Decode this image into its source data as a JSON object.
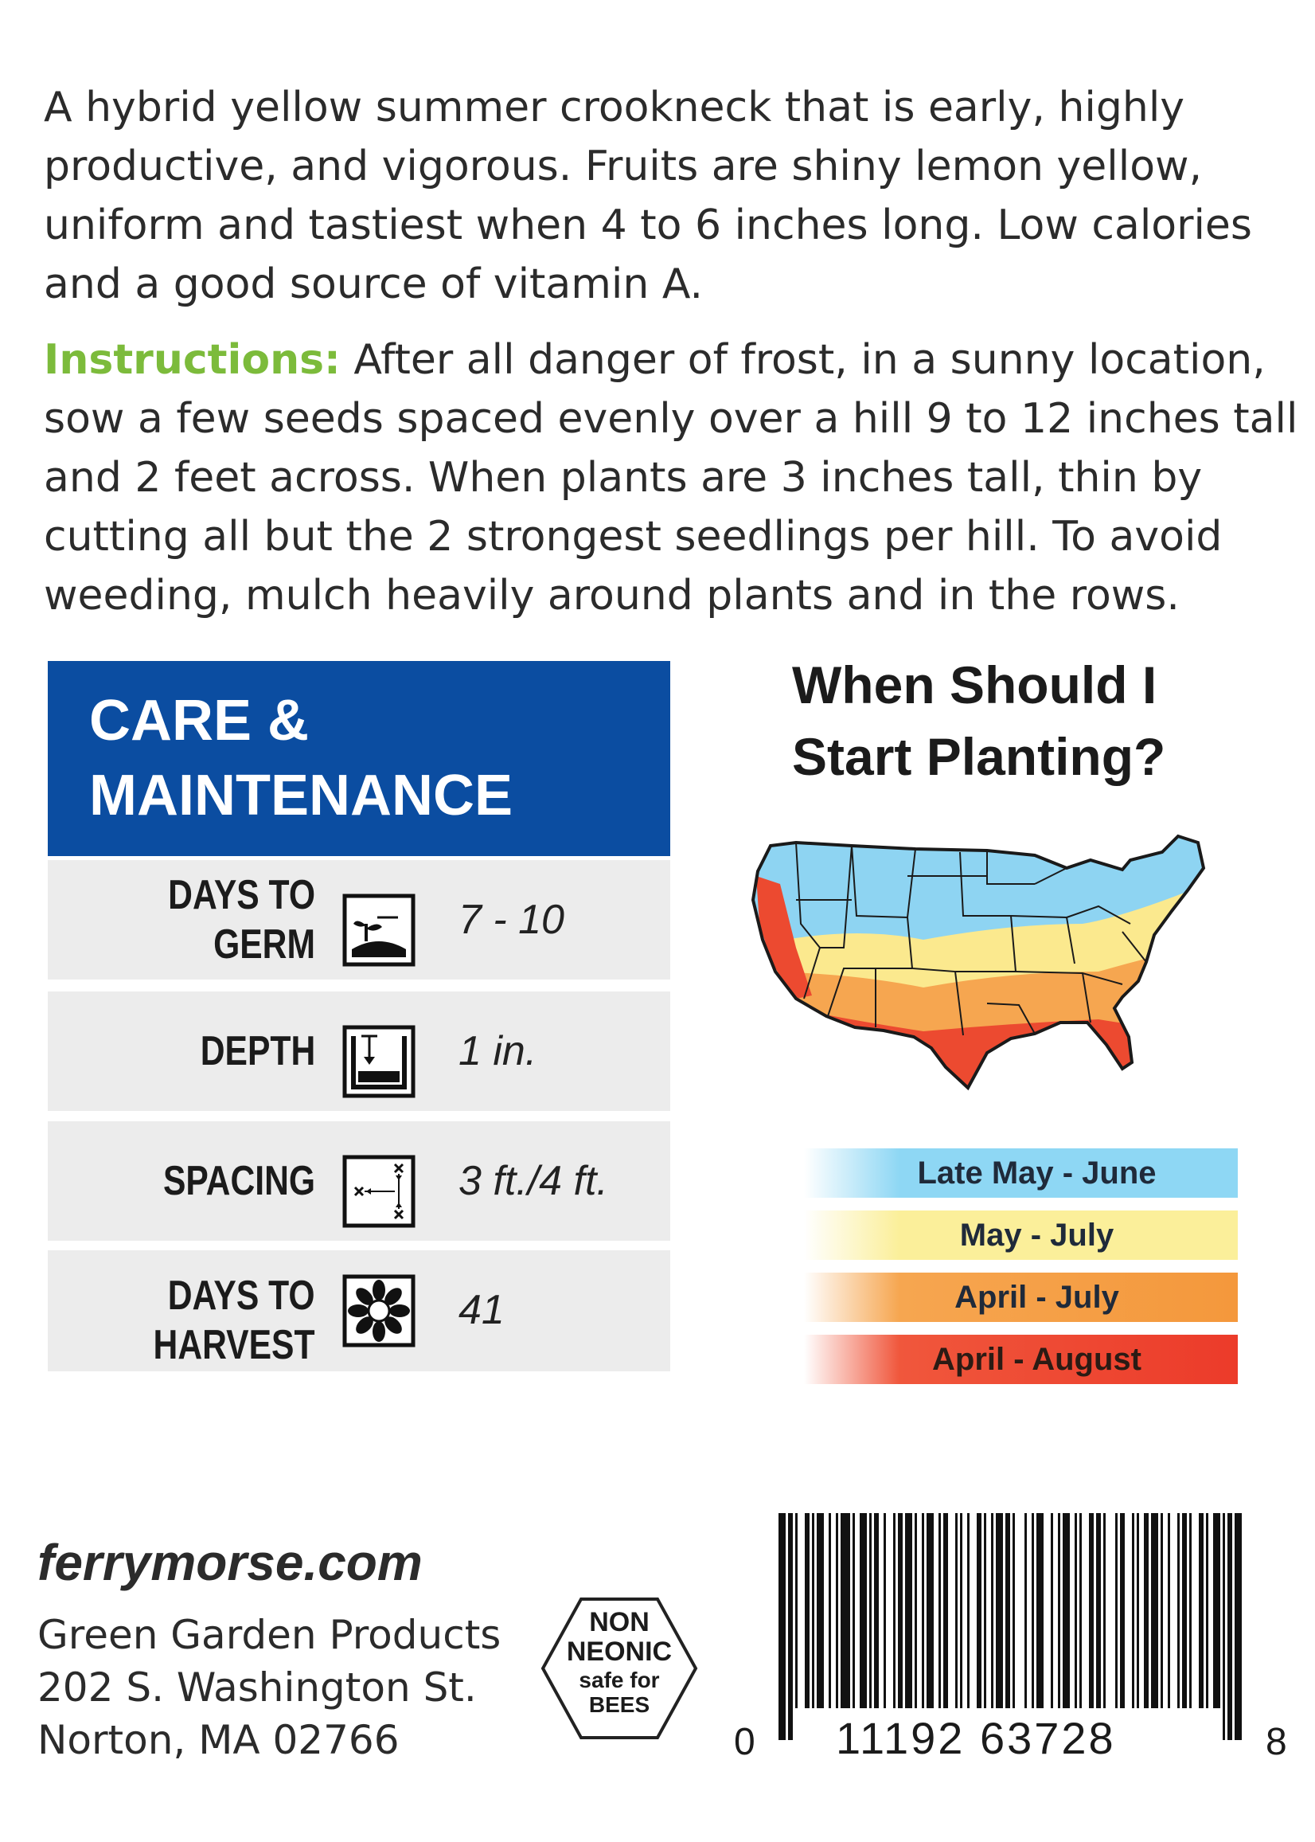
{
  "description": "A hybrid yellow summer crookneck that is early, highly productive, and vigorous. Fruits are shiny lemon yellow, uniform and tastiest when 4 to 6 inches long. Low calories and a good source of vitamin A.",
  "instructions": {
    "label": "Instructions:",
    "text": " After all danger of frost, in a sunny location, sow a few seeds spaced evenly over a hill 9 to 12 inches tall and 2 feet across. When plants are 3 inches tall, thin by cutting all but the 2 strongest seedlings per hill. To avoid weeding, mulch heavily around plants and in the rows."
  },
  "care": {
    "title_line1": "CARE &",
    "title_line2": "MAINTENANCE",
    "rows": [
      {
        "label": "DAYS TO GERM",
        "icon": "germination-icon",
        "value": "7 - 10"
      },
      {
        "label": "DEPTH",
        "icon": "depth-icon",
        "value": "1 in."
      },
      {
        "label": "SPACING",
        "icon": "spacing-icon",
        "value": "3 ft./4 ft."
      },
      {
        "label_line1": "DAYS TO",
        "label_line2": "HARVEST",
        "icon": "harvest-flower-icon",
        "value": "41"
      }
    ]
  },
  "planting": {
    "title_line1": "When Should I",
    "title_line2": "Start Planting?",
    "legend": [
      {
        "label": "Late May - June",
        "color": "#8ed7f4"
      },
      {
        "label": "May - July",
        "color": "#fbef9a"
      },
      {
        "label": "April - July",
        "color": "#f4983c"
      },
      {
        "label": "April - August",
        "color": "#ec3b2a"
      }
    ]
  },
  "footer": {
    "website": "ferrymorse.com",
    "company": "Green Garden Products",
    "street": "202 S. Washington St.",
    "city": "Norton, MA 02766",
    "badge": {
      "line1": "NON",
      "line2": "NEONIC",
      "line3": "safe for",
      "line4": "BEES"
    },
    "barcode": {
      "first": "0",
      "middle": "11192 63728",
      "last": "8"
    }
  },
  "colors": {
    "care_header": "#0b4da1",
    "instructions_label": "#7cbb3b",
    "row_background": "#ececec"
  }
}
